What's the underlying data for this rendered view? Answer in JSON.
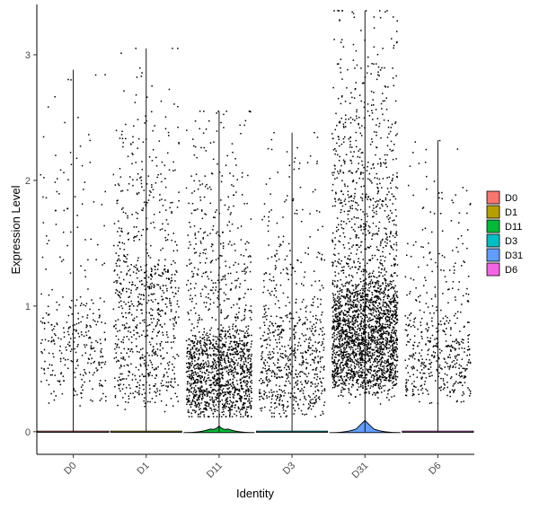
{
  "chart_data": {
    "type": "violin",
    "xlabel": "Identity",
    "ylabel": "Expression Level",
    "ylim": [
      -0.18,
      3.4
    ],
    "yticks": [
      0,
      1,
      2,
      3
    ],
    "grid": false,
    "legend_position": "right",
    "categories": [
      "D0",
      "D1",
      "D11",
      "D3",
      "D31",
      "D6"
    ],
    "series": [
      {
        "name": "D0",
        "color": "#F8766D",
        "max": 2.88,
        "n_points": 330,
        "low": 0.28,
        "high": 1.0
      },
      {
        "name": "D1",
        "color": "#B79F00",
        "max": 3.05,
        "n_points": 820,
        "low": 0.25,
        "high": 1.4
      },
      {
        "name": "D11",
        "color": "#00BA38",
        "max": 2.55,
        "n_points": 1550,
        "low": 0.15,
        "high": 0.75
      },
      {
        "name": "D3",
        "color": "#00BFC4",
        "max": 2.38,
        "n_points": 720,
        "low": 0.15,
        "high": 0.9
      },
      {
        "name": "D31",
        "color": "#619CFF",
        "max": 3.35,
        "n_points": 2700,
        "low": 0.35,
        "high": 1.15
      },
      {
        "name": "D6",
        "color": "#F564E3",
        "max": 2.32,
        "n_points": 500,
        "low": 0.3,
        "high": 0.9
      }
    ]
  }
}
